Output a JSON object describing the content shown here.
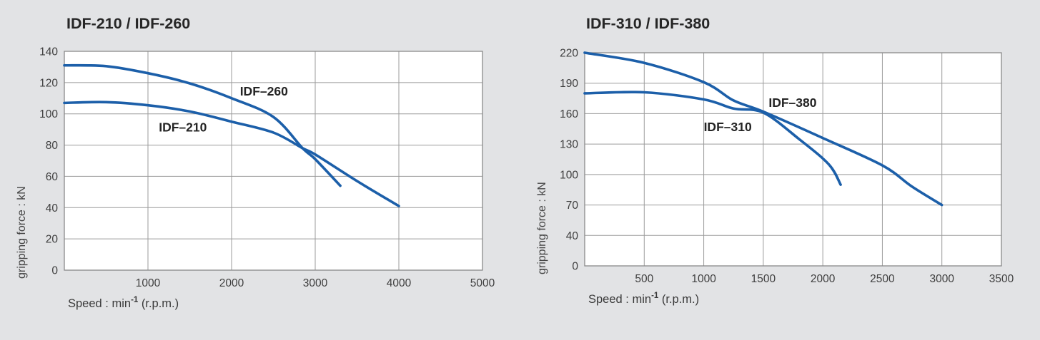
{
  "page": {
    "background": "#e2e3e5",
    "curve_color": "#1c5fa9",
    "grid_color": "#9b9b9b",
    "border_color": "#8a8a8a",
    "plot_background": "#ffffff",
    "title_color": "#262626",
    "tick_color": "#3f3f3f"
  },
  "chart_data": [
    {
      "type": "line",
      "title": "IDF-210 / IDF-260",
      "ylabel": "gripping force : kN",
      "xlabel": {
        "prefix": "Speed : min",
        "sup": "-1",
        "suffix": " (r.p.m.)"
      },
      "grid": true,
      "legend_position": "inline-labels",
      "xlim": [
        0,
        5000
      ],
      "x_ticks": [
        0,
        1000,
        2000,
        3000,
        4000,
        5000
      ],
      "x_tick_labels": [
        "",
        "1000",
        "2000",
        "3000",
        "4000",
        "5000"
      ],
      "y_ticks": [
        0,
        20,
        40,
        60,
        80,
        100,
        120,
        140
      ],
      "y_tick_labels": [
        "0",
        "20",
        "40",
        "60",
        "80",
        "100",
        "120",
        "140"
      ],
      "series": [
        {
          "name": "IDF-260",
          "label": "IDF–260",
          "label_anchor": {
            "x": 2100,
            "y": 114.5
          },
          "points": [
            [
              0,
              131
            ],
            [
              500,
              130.5
            ],
            [
              1000,
              126
            ],
            [
              1500,
              119.5
            ],
            [
              2000,
              110
            ],
            [
              2500,
              98
            ],
            [
              2850,
              78
            ],
            [
              3000,
              71
            ],
            [
              3300,
              54
            ]
          ]
        },
        {
          "name": "IDF-210",
          "label": "IDF–210",
          "label_anchor": {
            "x": 1130,
            "y": 91.5
          },
          "points": [
            [
              0,
              107
            ],
            [
              500,
              107.5
            ],
            [
              1000,
              105.5
            ],
            [
              1500,
              101.5
            ],
            [
              2000,
              95
            ],
            [
              2500,
              88
            ],
            [
              2850,
              78
            ],
            [
              3000,
              74
            ],
            [
              3500,
              57
            ],
            [
              4000,
              41
            ]
          ]
        }
      ]
    },
    {
      "type": "line",
      "title": "IDF-310 / IDF-380",
      "ylabel": "gripping force : kN",
      "xlabel": {
        "prefix": "Speed : min",
        "sup": "-1",
        "suffix": " (r.p.m.)"
      },
      "grid": true,
      "legend_position": "inline-labels",
      "xlim": [
        0,
        3500
      ],
      "x_ticks": [
        0,
        500,
        1000,
        1500,
        2000,
        2500,
        3000,
        3500
      ],
      "x_tick_labels": [
        "",
        "500",
        "1000",
        "1500",
        "2000",
        "2500",
        "3000",
        "3500"
      ],
      "y_ticks": [
        0,
        40,
        70,
        100,
        130,
        160,
        190,
        220
      ],
      "y_tick_labels": [
        "0",
        "40",
        "70",
        "100",
        "130",
        "160",
        "190",
        "220"
      ],
      "y_scale_note": "tick labels equally spaced (non-linear below 40)",
      "series": [
        {
          "name": "IDF-380",
          "label": "IDF–380",
          "label_anchor": {
            "x": 1545,
            "y": 171
          },
          "points": [
            [
              0,
              220
            ],
            [
              500,
              210
            ],
            [
              1000,
              191
            ],
            [
              1250,
              173
            ],
            [
              1500,
              162
            ],
            [
              2000,
              136
            ],
            [
              2500,
              109
            ],
            [
              2750,
              88
            ],
            [
              3000,
              70
            ]
          ]
        },
        {
          "name": "IDF-310",
          "label": "IDF–310",
          "label_anchor": {
            "x": 1000,
            "y": 147
          },
          "points": [
            [
              0,
              180
            ],
            [
              500,
              181
            ],
            [
              1000,
              174
            ],
            [
              1250,
              165
            ],
            [
              1500,
              161
            ],
            [
              1800,
              135
            ],
            [
              2050,
              110
            ],
            [
              2150,
              90
            ]
          ]
        }
      ]
    }
  ]
}
